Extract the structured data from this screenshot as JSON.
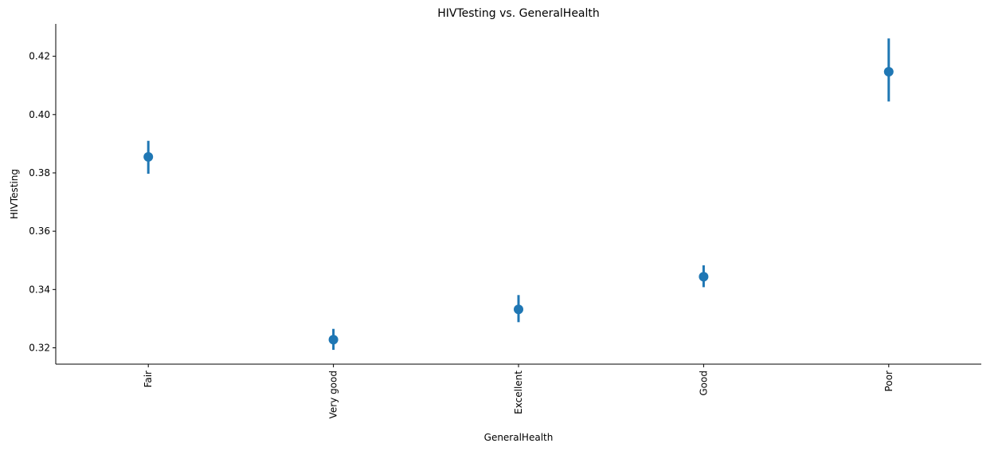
{
  "chart_data": {
    "type": "pointplot",
    "title": "HIVTesting vs. GeneralHealth",
    "xlabel": "GeneralHealth",
    "ylabel": "HIVTesting",
    "categories": [
      "Fair",
      "Very good",
      "Excellent",
      "Good",
      "Poor"
    ],
    "series": [
      {
        "values": [
          0.3855,
          0.3228,
          0.3332,
          0.3444,
          0.4147
        ],
        "ci_low": [
          0.3797,
          0.3193,
          0.3288,
          0.3408,
          0.4045
        ],
        "ci_high": [
          0.391,
          0.3265,
          0.3381,
          0.3483,
          0.4261
        ],
        "color": "#1f77b4"
      }
    ],
    "yticks": [
      0.32,
      0.34,
      0.36,
      0.38,
      0.4,
      0.42
    ],
    "ytick_labels": [
      "0.32",
      "0.34",
      "0.36",
      "0.38",
      "0.40",
      "0.42"
    ],
    "ylim": [
      0.3144,
      0.4311
    ],
    "grid": false,
    "xtick_rotation": "vertical"
  }
}
